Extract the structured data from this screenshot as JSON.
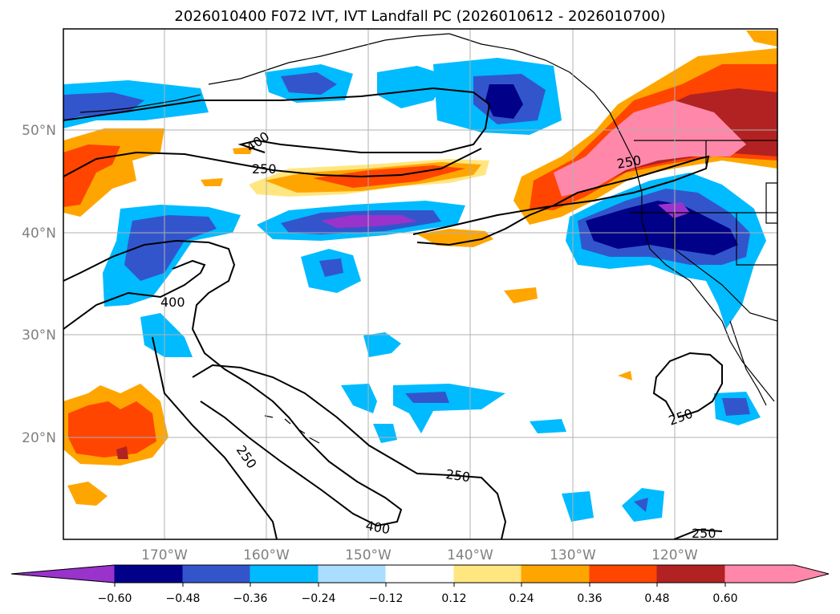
{
  "title": "2026010400 F072 IVT, IVT Landfall PC (2026010612 - 2026010700)",
  "map": {
    "lon_labels": [
      "170°W",
      "160°W",
      "150°W",
      "140°W",
      "130°W",
      "120°W"
    ],
    "lat_labels": [
      "50°N",
      "40°N",
      "30°N",
      "20°N"
    ],
    "ivt_contour_labels": [
      "400",
      "250",
      "250",
      "400",
      "250",
      "250",
      "400",
      "250",
      "250"
    ]
  },
  "colorbar": {
    "tick_labels": [
      "−0.60",
      "−0.48",
      "−0.36",
      "−0.24",
      "−0.12",
      "0.12",
      "0.24",
      "0.36",
      "0.48",
      "0.60"
    ],
    "colors": [
      "#9933cc",
      "#000088",
      "#3355cc",
      "#00bbff",
      "#aaddff",
      "#ffffff",
      "#ffe680",
      "#ffa500",
      "#ff4500",
      "#b22222",
      "#ff88aa",
      "#ff88aa"
    ]
  }
}
